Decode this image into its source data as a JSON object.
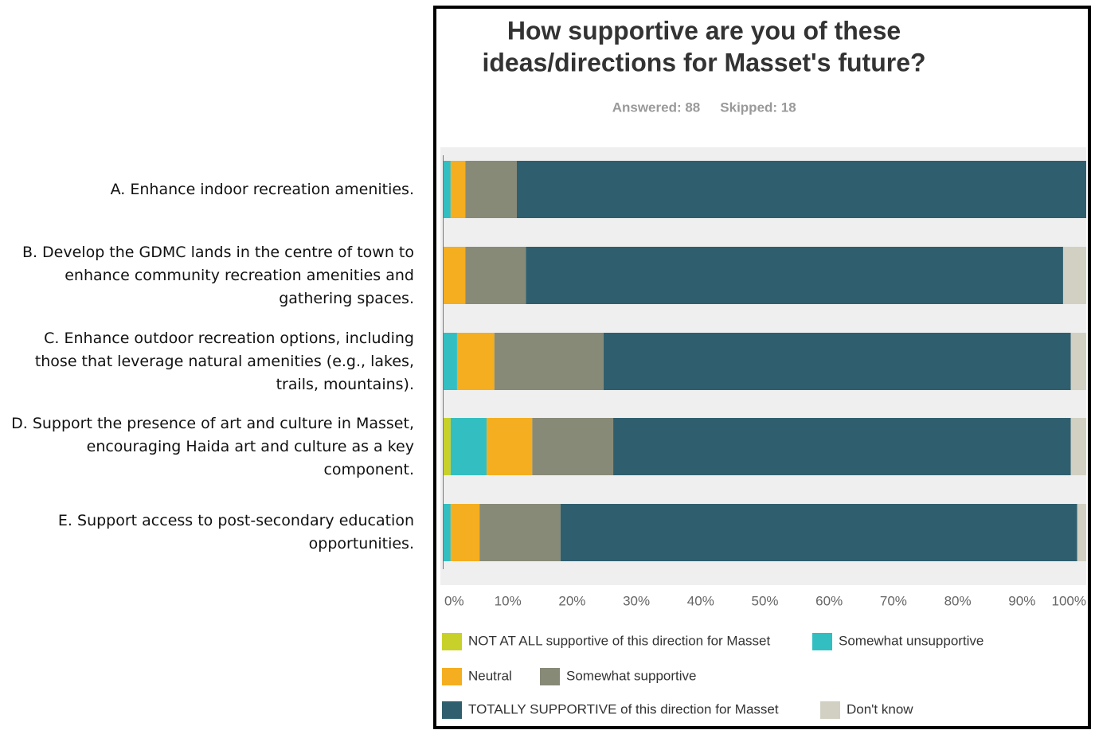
{
  "chart_data": {
    "type": "stacked-bar-horizontal",
    "title": [
      "How supportive are you of these",
      "ideas/directions for Masset's future?"
    ],
    "subtitle": [
      "Answered: 88",
      "Skipped: 18"
    ],
    "categories": [
      "A. Enhance indoor recreation amenities.",
      "B. Develop the GDMC lands in the centre of town to enhance community recreation amenities and gathering spaces.",
      "C. Enhance outdoor recreation options, including those that leverage natural amenities (e.g., lakes, trails, mountains).",
      "D. Support the presence of art and culture in Masset, encouraging Haida art and culture as a key component.",
      "E. Support access to post-secondary education opportunities."
    ],
    "series": [
      {
        "name": "NOT AT ALL supportive of this direction for Masset",
        "color": "#c8d12a",
        "values": [
          0,
          0,
          0,
          1.1,
          0
        ]
      },
      {
        "name": "Somewhat unsupportive",
        "color": "#33bfc1",
        "values": [
          1.1,
          0,
          2.1,
          5.6,
          1.1
        ]
      },
      {
        "name": "Neutral",
        "color": "#f4ae1f",
        "values": [
          2.3,
          3.4,
          5.8,
          7.1,
          4.5
        ]
      },
      {
        "name": "Somewhat supportive",
        "color": "#888a78",
        "values": [
          8,
          9.4,
          17,
          12.6,
          12.6
        ]
      },
      {
        "name": "TOTALLY SUPPORTIVE of this direction for Masset",
        "color": "#2f5f6e",
        "values": [
          88.6,
          83.6,
          72.7,
          71.2,
          80.4
        ]
      },
      {
        "name": "Don't know",
        "color": "#d2d0c2",
        "values": [
          0,
          3.6,
          2.4,
          2.4,
          1.4
        ]
      }
    ],
    "xlim": [
      0,
      100
    ],
    "xticks": [
      {
        "value": 0,
        "label": "0%"
      },
      {
        "value": 10,
        "label": "10%"
      },
      {
        "value": 20,
        "label": "20%"
      },
      {
        "value": 30,
        "label": "30%"
      },
      {
        "value": 40,
        "label": "40%"
      },
      {
        "value": 50,
        "label": "50%"
      },
      {
        "value": 60,
        "label": "60%"
      },
      {
        "value": 70,
        "label": "70%"
      },
      {
        "value": 80,
        "label": "80%"
      },
      {
        "value": 90,
        "label": "90%"
      },
      {
        "value": 100,
        "label": "100%"
      }
    ],
    "grid": false
  }
}
